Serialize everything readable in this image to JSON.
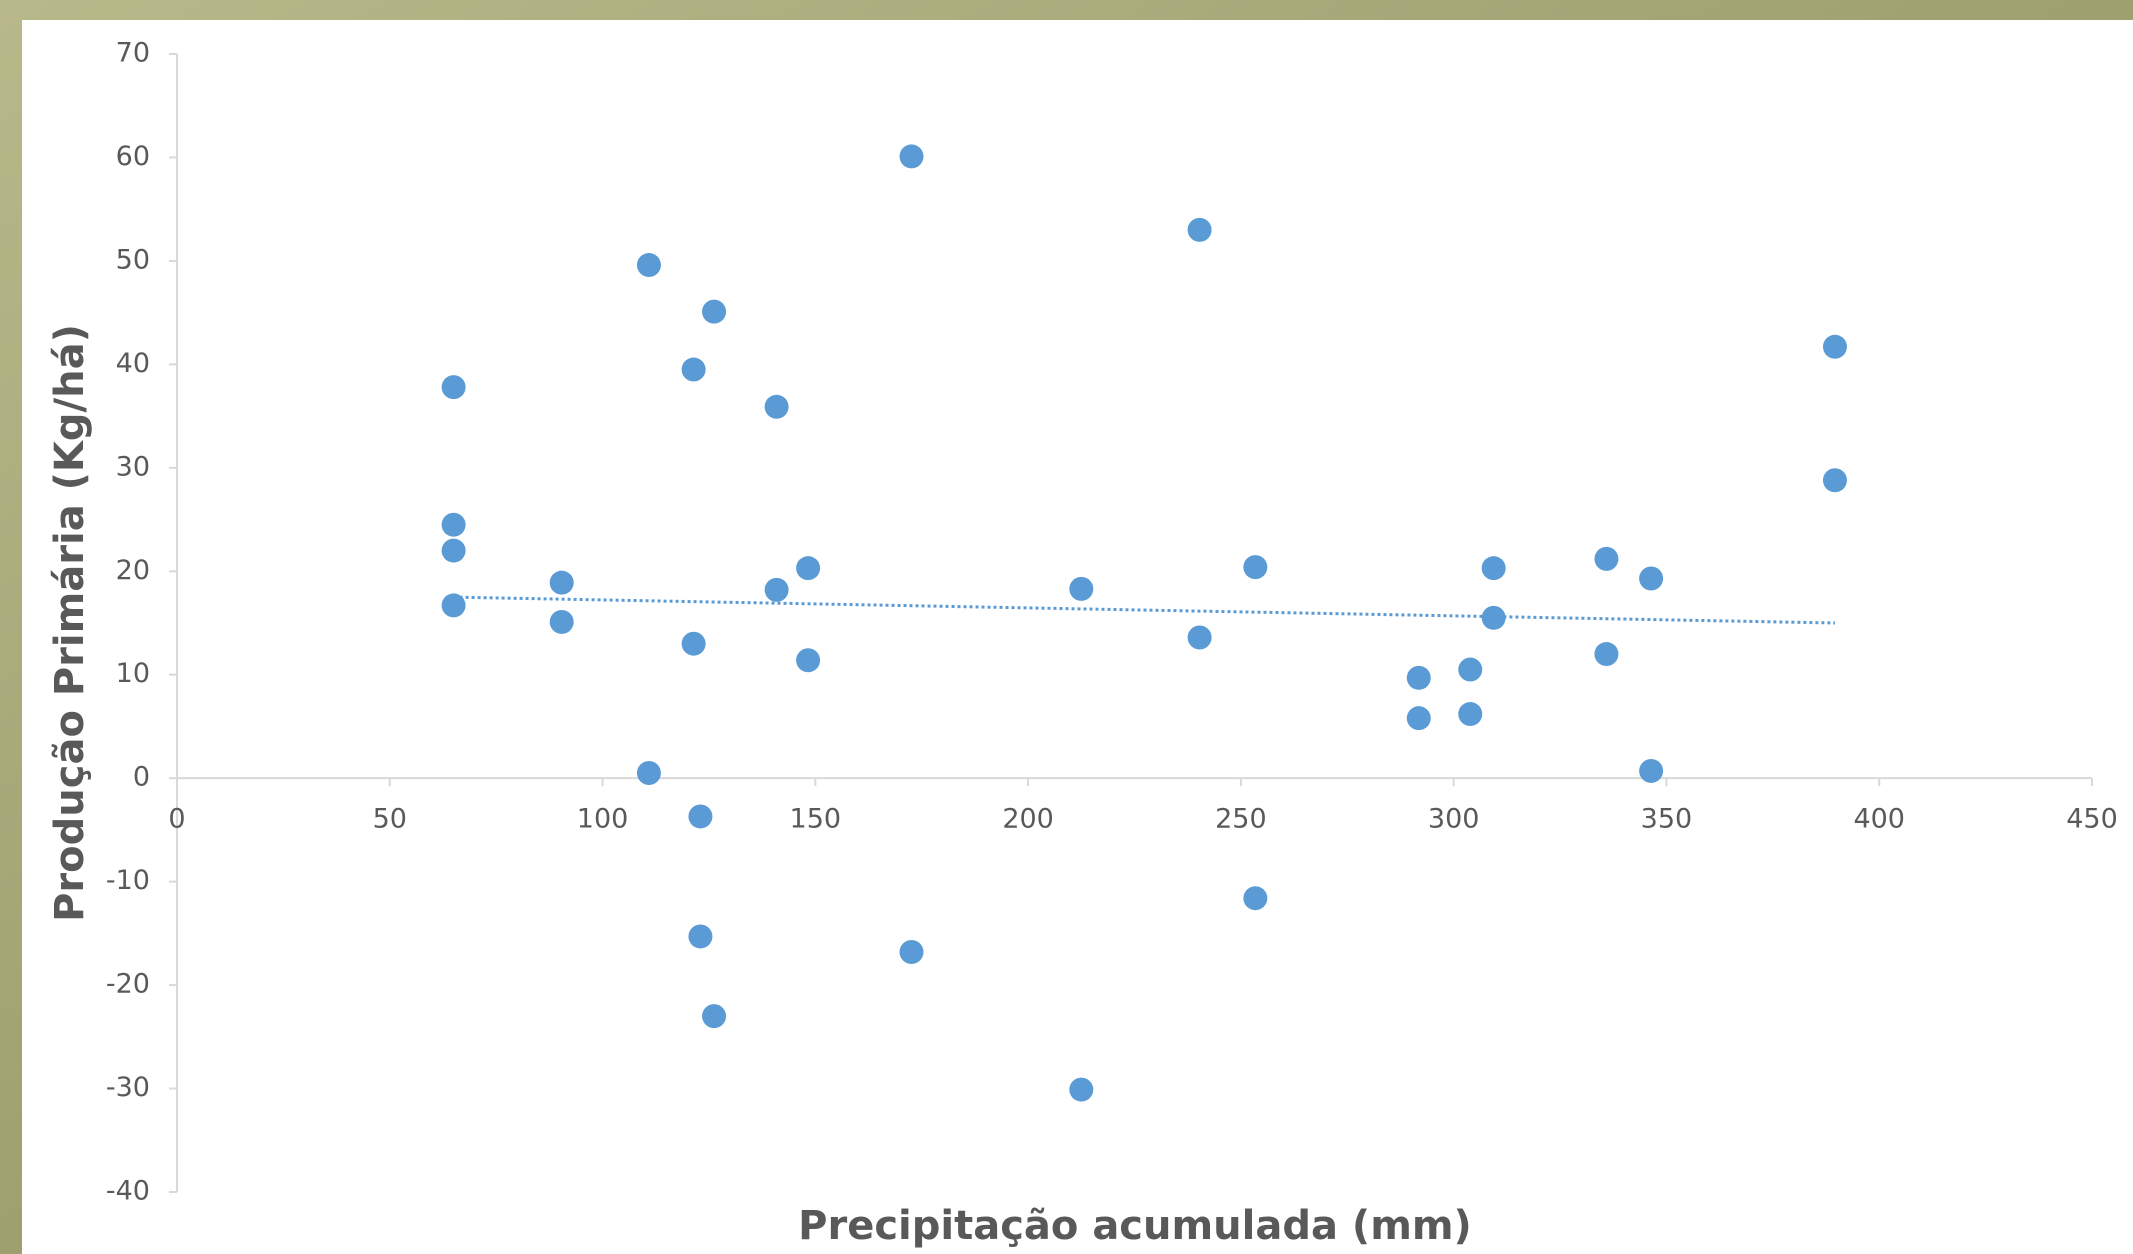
{
  "chart_data": {
    "type": "scatter",
    "x_label": "Precipitação acumulada (mm)",
    "y_label": "Produção Primária (Kg/há)",
    "color": "#5b9bd5",
    "x": [
      65,
      65,
      65,
      65,
      90.4,
      90.4,
      110.9,
      110.9,
      121.4,
      121.4,
      123,
      123,
      126.2,
      126.2,
      140.9,
      140.9,
      148.3,
      148.3,
      172.6,
      172.6,
      212.5,
      212.5,
      240.3,
      240.3,
      253.4,
      253.4,
      291.8,
      291.8,
      303.9,
      303.9,
      309.4,
      309.4,
      335.9,
      335.9,
      346.4,
      346.4,
      389.6,
      389.6
    ],
    "values": [
      37.8,
      24.5,
      22.0,
      16.7,
      18.9,
      15.1,
      49.6,
      0.5,
      39.5,
      13.0,
      -3.7,
      -15.3,
      45.1,
      -23.0,
      35.9,
      18.2,
      20.3,
      11.4,
      60.1,
      -16.8,
      18.3,
      -30.1,
      53.0,
      13.6,
      20.4,
      -11.6,
      9.7,
      5.8,
      10.5,
      6.2,
      20.3,
      15.5,
      21.2,
      12.0,
      19.3,
      0.7,
      41.7,
      28.8
    ],
    "trendline": {
      "x": [
        65,
        389.6
      ],
      "values": [
        17.5,
        15.0
      ]
    },
    "xlim": [
      0,
      450
    ],
    "xticks": [
      0,
      50,
      100,
      150,
      200,
      250,
      300,
      350,
      400,
      450
    ],
    "ylim": [
      -40,
      70
    ],
    "yticks": [
      -40,
      -30,
      -20,
      -10,
      0,
      10,
      20,
      30,
      40,
      50,
      60,
      70
    ],
    "grid": false
  }
}
